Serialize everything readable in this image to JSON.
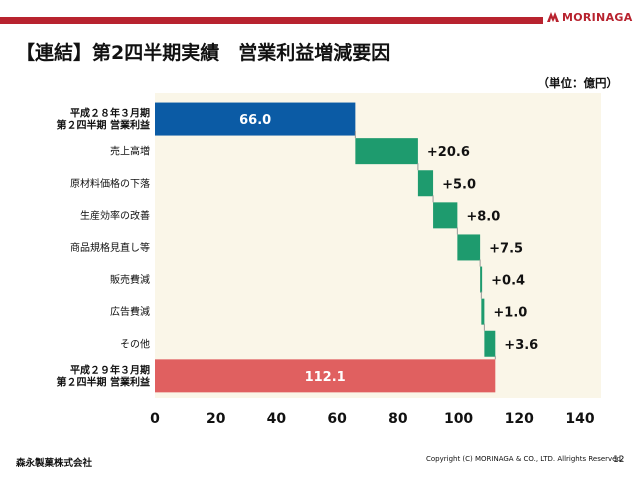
{
  "header": {
    "brand": "MORINAGA",
    "title": "【連結】第2四半期実績　営業利益増減要因",
    "unit": "（単位：億円）"
  },
  "colors": {
    "brand_red": "#b8232f",
    "start_bar": "#0b5ba5",
    "end_bar": "#e06060",
    "increase": "#1e9b6e",
    "plot_bg": "#faf6e8"
  },
  "chart_data": {
    "type": "bar",
    "orientation": "horizontal",
    "style": "waterfall",
    "categories": [
      "平成２８年３月期\n第２四半期 営業利益",
      "売上高増",
      "原材料価格の下落",
      "生産効率の改善",
      "商品規格見直し等",
      "販売費減",
      "広告費減",
      "その他",
      "平成２９年３月期\n第２四半期 営業利益"
    ],
    "values": [
      66.0,
      20.6,
      5.0,
      8.0,
      7.5,
      0.4,
      1.0,
      3.6,
      112.1
    ],
    "kinds": [
      "total",
      "delta",
      "delta",
      "delta",
      "delta",
      "delta",
      "delta",
      "delta",
      "total"
    ],
    "data_labels": [
      "66.0",
      "+20.6",
      "+5.0",
      "+8.0",
      "+7.5",
      "+0.4",
      "+1.0",
      "+3.6",
      "112.1"
    ],
    "xlim": [
      0,
      140
    ],
    "xticks": [
      0,
      20,
      40,
      60,
      80,
      100,
      120,
      140
    ],
    "xlabel": "",
    "ylabel": "",
    "grid": false
  },
  "footer": {
    "company": "森永製菓株式会社",
    "copyright": "Copyright (C) MORINAGA & CO., LTD. Allrights Reserved.",
    "page": "12"
  }
}
